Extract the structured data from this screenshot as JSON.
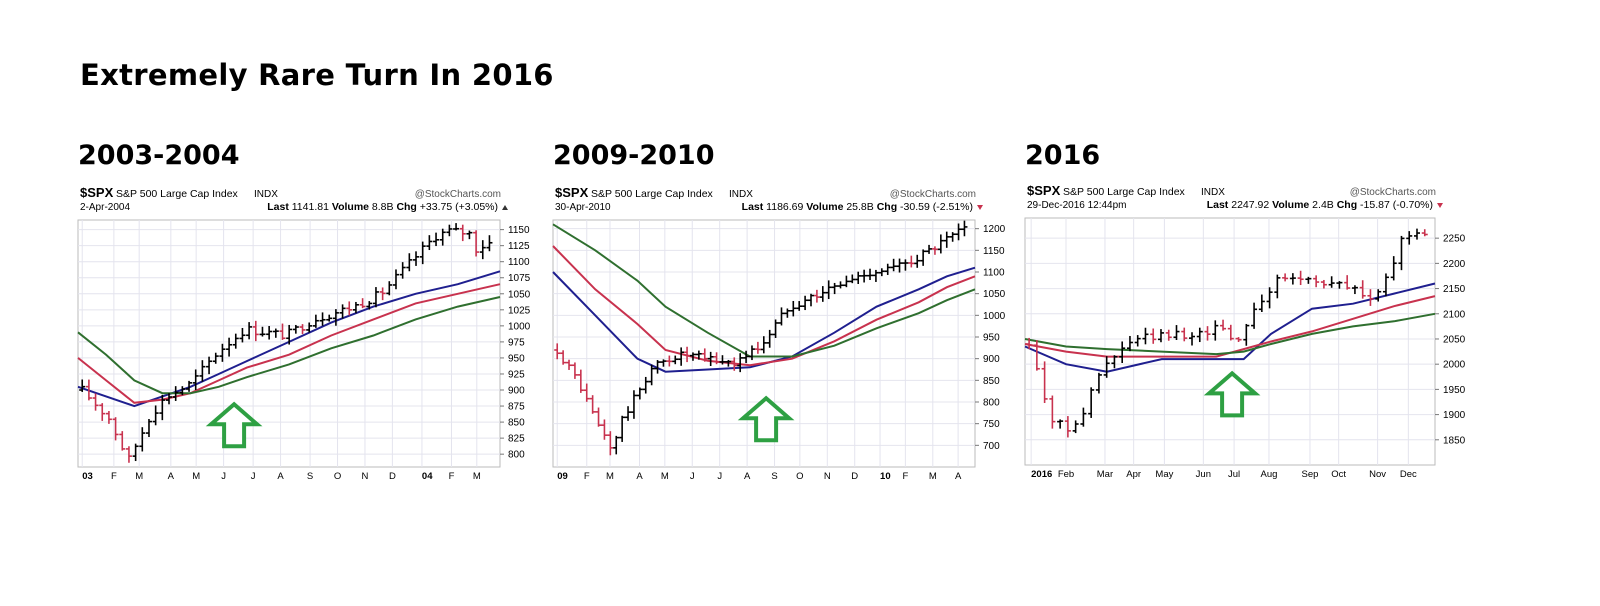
{
  "title": "Extremely Rare Turn In 2016",
  "colors": {
    "ma_fast": "#1f1f8f",
    "ma_mid": "#c8324e",
    "ma_slow": "#2f6f2f",
    "bar_up": "#000000",
    "bar_down": "#c8324e",
    "arrow": "#2ea043"
  },
  "chart_data": [
    {
      "type": "line",
      "period_label": "2003-2004",
      "symbol": "$SPX",
      "name": "S&P 500 Large Cap Index",
      "exchange": "INDX",
      "watermark": "@StockCharts.com",
      "date": "2-Apr-2004",
      "last_label": "Last",
      "last": "1141.81",
      "volume_label": "Volume",
      "volume": "8.8B",
      "chg_label": "Chg",
      "chg": "+33.75 (+3.05%)",
      "chg_dir": "up",
      "ylim": [
        780,
        1165
      ],
      "yticks": [
        800,
        825,
        850,
        875,
        900,
        925,
        950,
        975,
        1000,
        1025,
        1050,
        1075,
        1100,
        1125,
        1150
      ],
      "xticks": [
        {
          "label": "03",
          "x": 0.01,
          "bold": true
        },
        {
          "label": "F",
          "x": 0.085
        },
        {
          "label": "M",
          "x": 0.145
        },
        {
          "label": "A",
          "x": 0.22
        },
        {
          "label": "M",
          "x": 0.28
        },
        {
          "label": "J",
          "x": 0.345
        },
        {
          "label": "J",
          "x": 0.415
        },
        {
          "label": "A",
          "x": 0.48
        },
        {
          "label": "S",
          "x": 0.55
        },
        {
          "label": "O",
          "x": 0.615
        },
        {
          "label": "N",
          "x": 0.68
        },
        {
          "label": "D",
          "x": 0.745
        },
        {
          "label": "04",
          "x": 0.815,
          "bold": true
        },
        {
          "label": "F",
          "x": 0.885
        },
        {
          "label": "M",
          "x": 0.945
        }
      ],
      "ohlc_shape": [
        [
          0.0,
          900
        ],
        [
          0.2,
          855
        ],
        [
          0.34,
          790
        ],
        [
          0.5,
          860
        ],
        [
          0.62,
          890
        ],
        [
          0.8,
          910
        ],
        [
          1.0,
          960
        ],
        [
          1.2,
          995
        ],
        [
          1.5,
          985
        ],
        [
          1.7,
          1010
        ],
        [
          2.0,
          1030
        ],
        [
          2.2,
          1050
        ],
        [
          2.4,
          1095
        ],
        [
          2.6,
          1140
        ],
        [
          2.7,
          1148
        ],
        [
          2.85,
          1145
        ],
        [
          2.9,
          1120
        ],
        [
          3.0,
          1130
        ]
      ],
      "series": [
        {
          "role": "ma_fast",
          "points": [
            [
              0,
              905
            ],
            [
              0.2,
              890
            ],
            [
              0.4,
              875
            ],
            [
              0.6,
              890
            ],
            [
              0.8,
              905
            ],
            [
              1,
              925
            ],
            [
              1.2,
              945
            ],
            [
              1.5,
              975
            ],
            [
              1.8,
              1005
            ],
            [
              2.1,
              1030
            ],
            [
              2.4,
              1050
            ],
            [
              2.7,
              1065
            ],
            [
              3,
              1085
            ]
          ]
        },
        {
          "role": "ma_mid",
          "points": [
            [
              0,
              950
            ],
            [
              0.2,
              915
            ],
            [
              0.4,
              880
            ],
            [
              0.6,
              885
            ],
            [
              0.8,
              895
            ],
            [
              1,
              915
            ],
            [
              1.2,
              935
            ],
            [
              1.5,
              955
            ],
            [
              1.8,
              985
            ],
            [
              2.1,
              1010
            ],
            [
              2.4,
              1035
            ],
            [
              2.7,
              1050
            ],
            [
              3,
              1065
            ]
          ]
        },
        {
          "role": "ma_slow",
          "points": [
            [
              0,
              990
            ],
            [
              0.2,
              955
            ],
            [
              0.4,
              915
            ],
            [
              0.6,
              895
            ],
            [
              0.8,
              895
            ],
            [
              1,
              905
            ],
            [
              1.2,
              920
            ],
            [
              1.5,
              940
            ],
            [
              1.8,
              965
            ],
            [
              2.1,
              985
            ],
            [
              2.4,
              1010
            ],
            [
              2.7,
              1030
            ],
            [
              3,
              1045
            ]
          ]
        }
      ],
      "arrow": {
        "x": 0.37,
        "y": 845
      }
    },
    {
      "type": "line",
      "period_label": "2009-2010",
      "symbol": "$SPX",
      "name": "S&P 500 Large Cap Index",
      "exchange": "INDX",
      "watermark": "@StockCharts.com",
      "date": "30-Apr-2010",
      "last_label": "Last",
      "last": "1186.69",
      "volume_label": "Volume",
      "volume": "25.8B",
      "chg_label": "Chg",
      "chg": "-30.59 (-2.51%)",
      "chg_dir": "down",
      "ylim": [
        650,
        1220
      ],
      "yticks": [
        700,
        750,
        800,
        850,
        900,
        950,
        1000,
        1050,
        1100,
        1150,
        1200
      ],
      "xticks": [
        {
          "label": "09",
          "x": 0.01,
          "bold": true
        },
        {
          "label": "F",
          "x": 0.08
        },
        {
          "label": "M",
          "x": 0.135
        },
        {
          "label": "A",
          "x": 0.205
        },
        {
          "label": "M",
          "x": 0.265
        },
        {
          "label": "J",
          "x": 0.33
        },
        {
          "label": "J",
          "x": 0.395
        },
        {
          "label": "A",
          "x": 0.46
        },
        {
          "label": "S",
          "x": 0.525
        },
        {
          "label": "O",
          "x": 0.585
        },
        {
          "label": "N",
          "x": 0.65
        },
        {
          "label": "D",
          "x": 0.715
        },
        {
          "label": "10",
          "x": 0.775,
          "bold": true
        },
        {
          "label": "F",
          "x": 0.835
        },
        {
          "label": "M",
          "x": 0.9
        },
        {
          "label": "A",
          "x": 0.96
        }
      ],
      "ohlc_shape": [
        [
          0.0,
          920
        ],
        [
          0.15,
          850
        ],
        [
          0.28,
          760
        ],
        [
          0.4,
          690
        ],
        [
          0.48,
          760
        ],
        [
          0.7,
          880
        ],
        [
          0.9,
          910
        ],
        [
          1.1,
          900
        ],
        [
          1.3,
          890
        ],
        [
          1.5,
          930
        ],
        [
          1.7,
          1020
        ],
        [
          2.0,
          1060
        ],
        [
          2.3,
          1100
        ],
        [
          2.5,
          1110
        ],
        [
          2.75,
          1150
        ],
        [
          3.0,
          1200
        ]
      ],
      "series": [
        {
          "role": "ma_fast",
          "points": [
            [
              0,
              1100
            ],
            [
              0.3,
              1000
            ],
            [
              0.6,
              900
            ],
            [
              0.8,
              870
            ],
            [
              1.1,
              875
            ],
            [
              1.4,
              880
            ],
            [
              1.7,
              905
            ],
            [
              2,
              960
            ],
            [
              2.3,
              1020
            ],
            [
              2.6,
              1060
            ],
            [
              2.8,
              1090
            ],
            [
              3,
              1110
            ]
          ]
        },
        {
          "role": "ma_mid",
          "points": [
            [
              0,
              1160
            ],
            [
              0.3,
              1060
            ],
            [
              0.6,
              980
            ],
            [
              0.8,
              920
            ],
            [
              1.1,
              895
            ],
            [
              1.4,
              885
            ],
            [
              1.7,
              900
            ],
            [
              2,
              940
            ],
            [
              2.3,
              990
            ],
            [
              2.6,
              1030
            ],
            [
              2.8,
              1065
            ],
            [
              3,
              1090
            ]
          ]
        },
        {
          "role": "ma_slow",
          "points": [
            [
              0,
              1210
            ],
            [
              0.3,
              1150
            ],
            [
              0.6,
              1080
            ],
            [
              0.8,
              1020
            ],
            [
              1.1,
              960
            ],
            [
              1.4,
              905
            ],
            [
              1.7,
              905
            ],
            [
              2,
              930
            ],
            [
              2.3,
              970
            ],
            [
              2.6,
              1005
            ],
            [
              2.8,
              1035
            ],
            [
              3,
              1060
            ]
          ]
        }
      ],
      "arrow": {
        "x": 0.505,
        "y": 760
      }
    },
    {
      "type": "line",
      "period_label": "2016",
      "symbol": "$SPX",
      "name": "S&P 500 Large Cap Index",
      "exchange": "INDX",
      "watermark": "@StockCharts.com",
      "date": "29-Dec-2016 12:44pm",
      "last_label": "Last",
      "last": "2247.92",
      "volume_label": "Volume",
      "volume": "2.4B",
      "chg_label": "Chg",
      "chg": "-15.87 (-0.70%)",
      "chg_dir": "down",
      "ylim": [
        1800,
        2290
      ],
      "yticks": [
        1850,
        1900,
        1950,
        2000,
        2050,
        2100,
        2150,
        2200,
        2250
      ],
      "xticks": [
        {
          "label": "2016",
          "x": 0.015,
          "bold": true
        },
        {
          "label": "Feb",
          "x": 0.1
        },
        {
          "label": "Mar",
          "x": 0.195
        },
        {
          "label": "Apr",
          "x": 0.265
        },
        {
          "label": "May",
          "x": 0.34
        },
        {
          "label": "Jun",
          "x": 0.435
        },
        {
          "label": "Jul",
          "x": 0.51
        },
        {
          "label": "Aug",
          "x": 0.595
        },
        {
          "label": "Sep",
          "x": 0.695
        },
        {
          "label": "Oct",
          "x": 0.765
        },
        {
          "label": "Nov",
          "x": 0.86
        },
        {
          "label": "Dec",
          "x": 0.935
        }
      ],
      "ohlc_shape": [
        [
          0.0,
          2040
        ],
        [
          0.1,
          1950
        ],
        [
          0.18,
          1890
        ],
        [
          0.28,
          1870
        ],
        [
          0.4,
          1900
        ],
        [
          0.55,
          1990
        ],
        [
          0.8,
          2050
        ],
        [
          1.2,
          2060
        ],
        [
          1.3,
          2060
        ],
        [
          1.5,
          2080
        ],
        [
          1.55,
          2030
        ],
        [
          1.7,
          2110
        ],
        [
          1.9,
          2170
        ],
        [
          2.1,
          2170
        ],
        [
          2.3,
          2160
        ],
        [
          2.45,
          2150
        ],
        [
          2.6,
          2130
        ],
        [
          2.7,
          2160
        ],
        [
          2.85,
          2260
        ],
        [
          3.0,
          2260
        ]
      ],
      "series": [
        {
          "role": "ma_fast",
          "points": [
            [
              0,
              2035
            ],
            [
              0.3,
              2000
            ],
            [
              0.6,
              1985
            ],
            [
              1,
              2010
            ],
            [
              1.4,
              2010
            ],
            [
              1.6,
              2010
            ],
            [
              1.8,
              2060
            ],
            [
              2.1,
              2110
            ],
            [
              2.4,
              2120
            ],
            [
              2.7,
              2140
            ],
            [
              3,
              2160
            ]
          ]
        },
        {
          "role": "ma_mid",
          "points": [
            [
              0,
              2040
            ],
            [
              0.3,
              2025
            ],
            [
              0.6,
              2015
            ],
            [
              1,
              2015
            ],
            [
              1.4,
              2015
            ],
            [
              1.6,
              2030
            ],
            [
              1.8,
              2045
            ],
            [
              2.1,
              2065
            ],
            [
              2.4,
              2090
            ],
            [
              2.7,
              2115
            ],
            [
              3,
              2135
            ]
          ]
        },
        {
          "role": "ma_slow",
          "points": [
            [
              0,
              2050
            ],
            [
              0.3,
              2035
            ],
            [
              0.6,
              2030
            ],
            [
              1,
              2025
            ],
            [
              1.4,
              2020
            ],
            [
              1.6,
              2025
            ],
            [
              1.8,
              2040
            ],
            [
              2.1,
              2060
            ],
            [
              2.4,
              2075
            ],
            [
              2.7,
              2085
            ],
            [
              3,
              2100
            ]
          ]
        }
      ],
      "arrow": {
        "x": 0.505,
        "y": 1940
      }
    }
  ]
}
